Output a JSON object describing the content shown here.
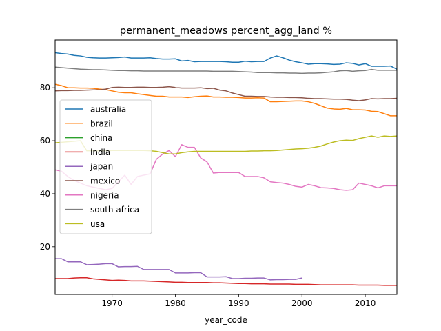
{
  "chart_data": {
    "type": "line",
    "title": "permanent_meadows percent_agg_land %",
    "xlabel": "year_code",
    "ylabel": "",
    "xlim": [
      1961,
      2015
    ],
    "ylim": [
      2,
      98
    ],
    "xticks": [
      1970,
      1980,
      1990,
      2000,
      2010
    ],
    "yticks": [
      20,
      40,
      60,
      80
    ],
    "legend_position": "center-left",
    "series": [
      {
        "name": "australia",
        "color": "#1f77b4",
        "x": [
          1961,
          1962,
          1963,
          1964,
          1965,
          1966,
          1967,
          1968,
          1969,
          1970,
          1971,
          1972,
          1973,
          1974,
          1975,
          1976,
          1977,
          1978,
          1979,
          1980,
          1981,
          1982,
          1983,
          1984,
          1985,
          1986,
          1987,
          1988,
          1989,
          1990,
          1991,
          1992,
          1993,
          1994,
          1995,
          1996,
          1997,
          1998,
          1999,
          2000,
          2001,
          2002,
          2003,
          2004,
          2005,
          2006,
          2007,
          2008,
          2009,
          2010,
          2011,
          2012,
          2013,
          2014,
          2015
        ],
        "y": [
          93.2,
          92.9,
          92.7,
          92.2,
          92.0,
          91.5,
          91.3,
          91.2,
          91.2,
          91.3,
          91.4,
          91.6,
          91.2,
          91.2,
          91.2,
          91.3,
          91.0,
          90.8,
          90.8,
          90.9,
          90.1,
          90.3,
          89.8,
          89.9,
          89.9,
          89.9,
          89.9,
          89.8,
          89.6,
          89.6,
          90.0,
          89.8,
          89.9,
          89.9,
          91.2,
          92.0,
          91.3,
          90.4,
          89.8,
          89.4,
          88.9,
          89.1,
          89.1,
          89.0,
          88.8,
          88.9,
          89.4,
          89.2,
          88.6,
          89.1,
          88.1,
          88.1,
          88.1,
          88.2,
          87.0
        ]
      },
      {
        "name": "brazil",
        "color": "#ff7f0e",
        "x": [
          1961,
          1962,
          1963,
          1964,
          1965,
          1966,
          1967,
          1968,
          1969,
          1970,
          1971,
          1972,
          1973,
          1974,
          1975,
          1976,
          1977,
          1978,
          1979,
          1980,
          1981,
          1982,
          1983,
          1984,
          1985,
          1986,
          1987,
          1988,
          1989,
          1990,
          1991,
          1992,
          1993,
          1994,
          1995,
          1996,
          1997,
          1998,
          1999,
          2000,
          2001,
          2002,
          2003,
          2004,
          2005,
          2006,
          2007,
          2008,
          2009,
          2010,
          2011,
          2012,
          2013,
          2014,
          2015
        ],
        "y": [
          81.3,
          80.8,
          80.0,
          80.0,
          79.9,
          79.9,
          79.8,
          79.5,
          79.3,
          78.8,
          78.3,
          78.1,
          78.1,
          77.7,
          77.4,
          77.1,
          76.8,
          76.8,
          76.5,
          76.5,
          76.5,
          76.3,
          76.6,
          76.8,
          76.9,
          76.5,
          76.5,
          76.4,
          76.4,
          76.3,
          76.1,
          76.1,
          76.2,
          76.1,
          74.7,
          74.7,
          74.8,
          74.9,
          75.0,
          75.0,
          74.7,
          74.1,
          73.2,
          72.3,
          72.0,
          71.9,
          72.2,
          71.7,
          71.7,
          71.6,
          71.1,
          71.0,
          70.2,
          69.4,
          69.4
        ]
      },
      {
        "name": "china",
        "color": "#2ca02c",
        "x": [],
        "y": []
      },
      {
        "name": "india",
        "color": "#d62728",
        "x": [
          1961,
          1962,
          1963,
          1964,
          1965,
          1966,
          1967,
          1968,
          1969,
          1970,
          1971,
          1972,
          1973,
          1974,
          1975,
          1976,
          1977,
          1978,
          1979,
          1980,
          1981,
          1982,
          1983,
          1984,
          1985,
          1986,
          1987,
          1988,
          1989,
          1990,
          1991,
          1992,
          1993,
          1994,
          1995,
          1996,
          1997,
          1998,
          1999,
          2000,
          2001,
          2002,
          2003,
          2004,
          2005,
          2006,
          2007,
          2008,
          2009,
          2010,
          2011,
          2012,
          2013,
          2014,
          2015
        ],
        "y": [
          8.0,
          8.0,
          8.0,
          8.2,
          8.3,
          8.3,
          7.9,
          7.7,
          7.5,
          7.3,
          7.4,
          7.3,
          7.1,
          7.1,
          7.1,
          7.0,
          6.9,
          6.8,
          6.7,
          6.6,
          6.6,
          6.5,
          6.5,
          6.5,
          6.5,
          6.4,
          6.4,
          6.3,
          6.2,
          6.1,
          6.1,
          6.0,
          6.0,
          6.0,
          5.9,
          5.9,
          5.9,
          5.9,
          5.8,
          5.8,
          5.8,
          5.7,
          5.6,
          5.6,
          5.6,
          5.6,
          5.6,
          5.6,
          5.5,
          5.5,
          5.5,
          5.5,
          5.4,
          5.4,
          5.4
        ]
      },
      {
        "name": "japan",
        "color": "#9467bd",
        "x": [
          1961,
          1962,
          1963,
          1964,
          1965,
          1966,
          1967,
          1968,
          1969,
          1970,
          1971,
          1972,
          1973,
          1974,
          1975,
          1976,
          1977,
          1978,
          1979,
          1980,
          1981,
          1982,
          1983,
          1984,
          1985,
          1986,
          1987,
          1988,
          1989,
          1990,
          1991,
          1992,
          1993,
          1994,
          1995,
          1996,
          1997,
          1998,
          1999,
          2000
        ],
        "y": [
          15.5,
          15.5,
          14.3,
          14.3,
          14.3,
          13.2,
          13.3,
          13.4,
          13.6,
          13.6,
          12.4,
          12.5,
          12.5,
          12.6,
          11.4,
          11.4,
          11.4,
          11.4,
          11.4,
          10.1,
          10.1,
          10.1,
          10.2,
          10.2,
          8.6,
          8.6,
          8.6,
          8.7,
          8.0,
          8.0,
          8.1,
          8.1,
          8.2,
          8.2,
          7.5,
          7.6,
          7.6,
          7.7,
          7.7,
          8.2
        ]
      },
      {
        "name": "mexico",
        "color": "#8c564b",
        "x": [
          1961,
          1962,
          1963,
          1964,
          1965,
          1966,
          1967,
          1968,
          1969,
          1970,
          1971,
          1972,
          1973,
          1974,
          1975,
          1976,
          1977,
          1978,
          1979,
          1980,
          1981,
          1982,
          1983,
          1984,
          1985,
          1986,
          1987,
          1988,
          1989,
          1990,
          1991,
          1992,
          1993,
          1994,
          1995,
          1996,
          1997,
          1998,
          1999,
          2000,
          2001,
          2002,
          2003,
          2004,
          2005,
          2006,
          2007,
          2008,
          2009,
          2010,
          2011,
          2012,
          2013,
          2014,
          2015
        ],
        "y": [
          78.8,
          78.9,
          78.9,
          79.0,
          79.0,
          79.1,
          79.2,
          79.2,
          79.5,
          80.1,
          80.2,
          80.1,
          80.1,
          80.2,
          80.2,
          80.1,
          80.1,
          80.2,
          80.4,
          80.1,
          79.9,
          79.9,
          79.9,
          80.0,
          79.7,
          79.8,
          79.1,
          78.8,
          78.0,
          77.4,
          76.8,
          76.8,
          76.7,
          76.7,
          76.5,
          76.4,
          76.4,
          76.3,
          76.3,
          76.2,
          76.0,
          75.9,
          75.9,
          75.8,
          75.7,
          75.7,
          75.6,
          75.3,
          75.1,
          75.4,
          75.9,
          75.8,
          75.9,
          75.9,
          76.0
        ]
      },
      {
        "name": "nigeria",
        "color": "#e377c2",
        "x": [
          1961,
          1962,
          1963,
          1964,
          1965,
          1966,
          1967,
          1968,
          1969,
          1970,
          1971,
          1972,
          1973,
          1974,
          1975,
          1976,
          1977,
          1978,
          1979,
          1980,
          1981,
          1982,
          1983,
          1984,
          1985,
          1986,
          1987,
          1988,
          1989,
          1990,
          1991,
          1992,
          1993,
          1994,
          1995,
          1996,
          1997,
          1998,
          1999,
          2000,
          2001,
          2002,
          2003,
          2004,
          2005,
          2006,
          2007,
          2008,
          2009,
          2010,
          2011,
          2012,
          2013,
          2014,
          2015
        ],
        "y": [
          49.0,
          48.5,
          46.5,
          45.0,
          44.0,
          43.0,
          42.5,
          42.0,
          41.5,
          42.0,
          44.5,
          47.0,
          43.5,
          46.5,
          47.0,
          47.5,
          53.0,
          55.0,
          56.3,
          54.0,
          58.5,
          57.5,
          57.5,
          53.5,
          52.0,
          47.8,
          48.0,
          48.0,
          48.0,
          48.0,
          46.5,
          46.5,
          46.5,
          46.0,
          44.5,
          44.2,
          44.0,
          43.5,
          42.8,
          42.5,
          43.5,
          43.0,
          42.3,
          42.2,
          42.0,
          41.5,
          41.3,
          41.5,
          44.0,
          43.5,
          43.0,
          42.2,
          43.0,
          43.0,
          43.0
        ]
      },
      {
        "name": "south africa",
        "color": "#7f7f7f",
        "x": [
          1961,
          1962,
          1963,
          1964,
          1965,
          1966,
          1967,
          1968,
          1969,
          1970,
          1971,
          1972,
          1973,
          1974,
          1975,
          1976,
          1977,
          1978,
          1979,
          1980,
          1981,
          1982,
          1983,
          1984,
          1985,
          1986,
          1987,
          1988,
          1989,
          1990,
          1991,
          1992,
          1993,
          1994,
          1995,
          1996,
          1997,
          1998,
          1999,
          2000,
          2001,
          2002,
          2003,
          2004,
          2005,
          2006,
          2007,
          2008,
          2009,
          2010,
          2011,
          2012,
          2013,
          2014,
          2015
        ],
        "y": [
          87.8,
          87.6,
          87.4,
          87.2,
          87.0,
          86.9,
          86.8,
          86.8,
          86.7,
          86.6,
          86.5,
          86.5,
          86.4,
          86.4,
          86.3,
          86.3,
          86.3,
          86.3,
          86.3,
          86.3,
          86.3,
          86.3,
          86.3,
          86.3,
          86.3,
          86.2,
          86.2,
          86.2,
          86.2,
          86.1,
          86.0,
          85.9,
          85.7,
          85.7,
          85.7,
          85.6,
          85.6,
          85.5,
          85.5,
          85.4,
          85.5,
          85.5,
          85.6,
          85.8,
          86.0,
          86.4,
          86.5,
          86.2,
          86.4,
          86.5,
          86.9,
          86.6,
          86.6,
          86.6,
          86.6
        ]
      },
      {
        "name": "usa",
        "color": "#bcbd22",
        "x": [
          1961,
          1962,
          1963,
          1964,
          1965,
          1966,
          1967,
          1968,
          1969,
          1970,
          1971,
          1972,
          1973,
          1974,
          1975,
          1976,
          1977,
          1978,
          1979,
          1980,
          1981,
          1982,
          1983,
          1984,
          1985,
          1986,
          1987,
          1988,
          1989,
          1990,
          1991,
          1992,
          1993,
          1994,
          1995,
          1996,
          1997,
          1998,
          1999,
          2000,
          2001,
          2002,
          2003,
          2004,
          2005,
          2006,
          2007,
          2008,
          2009,
          2010,
          2011,
          2012,
          2013,
          2014,
          2015
        ],
        "y": [
          59.2,
          59.4,
          59.6,
          59.8,
          60.0,
          56.2,
          56.2,
          56.2,
          56.2,
          56.3,
          56.3,
          56.3,
          56.3,
          56.3,
          56.3,
          56.2,
          56.0,
          55.5,
          55.0,
          55.0,
          55.5,
          55.8,
          56.0,
          56.0,
          56.0,
          56.0,
          56.0,
          56.0,
          56.0,
          56.0,
          56.0,
          56.1,
          56.1,
          56.2,
          56.2,
          56.3,
          56.5,
          56.7,
          56.9,
          57.0,
          57.2,
          57.5,
          58.0,
          58.8,
          59.5,
          60.0,
          60.2,
          60.1,
          60.8,
          61.3,
          61.8,
          61.3,
          61.8,
          61.6,
          61.8
        ]
      }
    ]
  }
}
